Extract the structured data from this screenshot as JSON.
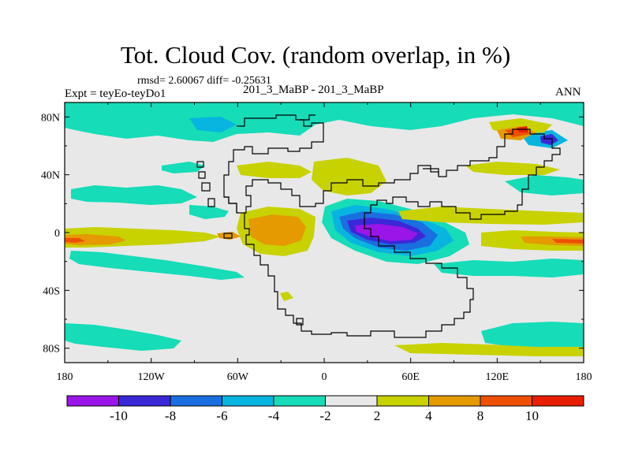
{
  "title": "Tot. Cloud Cov. (random overlap, in %)",
  "stats": "rmsd= 2.60067 diff= -0.25631",
  "experiment": "Expt = teyEo-teyDo1",
  "case_label": "201_3_MaBP - 201_3_MaBP",
  "season": "ANN",
  "axes": {
    "lon_ticks": [
      {
        "lon": -180,
        "label": "180"
      },
      {
        "lon": -120,
        "label": "120W"
      },
      {
        "lon": -60,
        "label": "60W"
      },
      {
        "lon": 0,
        "label": "0"
      },
      {
        "lon": 60,
        "label": "60E"
      },
      {
        "lon": 120,
        "label": "120E"
      },
      {
        "lon": 180,
        "label": "180"
      }
    ],
    "lat_ticks": [
      {
        "lat": 80,
        "label": "80N"
      },
      {
        "lat": 40,
        "label": "40N"
      },
      {
        "lat": 0,
        "label": "0"
      },
      {
        "lat": -40,
        "label": "40S"
      },
      {
        "lat": -80,
        "label": "80S"
      }
    ],
    "lon_range": [
      -180,
      180
    ],
    "lat_range": [
      -90,
      90
    ]
  },
  "colorbar": {
    "levels": [
      -10,
      -8,
      -6,
      -4,
      -2,
      2,
      4,
      8,
      10
    ],
    "labels": [
      "-10",
      "-8",
      "-6",
      "-4",
      "-2",
      "2",
      "4",
      "8",
      "10"
    ],
    "colors": [
      "#9a15e8",
      "#3a28d8",
      "#1a6fe0",
      "#08b4e0",
      "#16dcb8",
      "#e8e8e8",
      "#c8d200",
      "#e49a00",
      "#ee5000",
      "#e81e00"
    ]
  },
  "colors": {
    "background_field": "#e8e8e8",
    "coastline": "#000000"
  }
}
